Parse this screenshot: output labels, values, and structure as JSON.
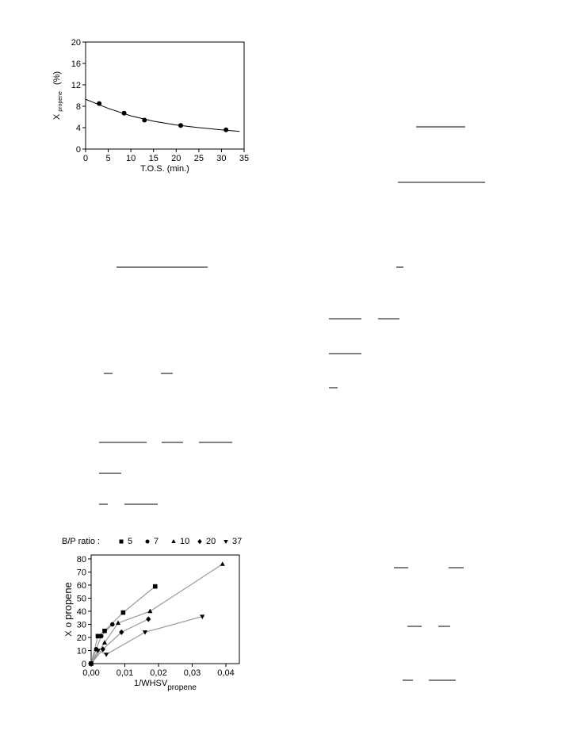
{
  "chart_data": [
    {
      "type": "scatter",
      "x": [
        3,
        8.5,
        13,
        21,
        31
      ],
      "values": [
        8.5,
        6.7,
        5.4,
        4.4,
        3.6
      ],
      "fit": {
        "x": [
          0,
          5,
          10,
          15,
          20,
          25,
          30,
          34
        ],
        "values": [
          9.3,
          7.6,
          6.2,
          5.2,
          4.5,
          4.0,
          3.6,
          3.3
        ]
      },
      "color": "#000000",
      "xlim": [
        0,
        35
      ],
      "xticks": [
        0,
        5,
        10,
        15,
        20,
        25,
        30,
        35
      ],
      "ylim": [
        0,
        20
      ],
      "yticks": [
        0,
        4,
        8,
        12,
        16,
        20
      ],
      "xlabel": "T.O.S. (min.)",
      "ylabel": "X",
      "ylabel_sub": "propene",
      "ylabel_unit": "(%)"
    },
    {
      "type": "scatter",
      "legend_title": "B/P ratio :",
      "series": [
        {
          "name": "5",
          "marker": "square",
          "color": "#000000",
          "x": [
            0,
            0.002,
            0.004,
            0.0095,
            0.019
          ],
          "values": [
            0,
            21,
            25,
            39,
            59
          ]
        },
        {
          "name": "7",
          "marker": "circle",
          "color": "#000000",
          "x": [
            0,
            0.0015,
            0.003,
            0.0063
          ],
          "values": [
            0,
            11,
            21,
            30
          ]
        },
        {
          "name": "10",
          "marker": "triangle",
          "color": "#000000",
          "x": [
            0,
            0.004,
            0.008,
            0.0175,
            0.039
          ],
          "values": [
            0,
            16,
            31,
            40,
            76
          ]
        },
        {
          "name": "20",
          "marker": "diamond",
          "color": "#000000",
          "x": [
            0,
            0.0035,
            0.009,
            0.017
          ],
          "values": [
            0,
            11,
            24,
            34
          ]
        },
        {
          "name": "37",
          "marker": "down-triangle",
          "color": "#000000",
          "x": [
            0,
            0.002,
            0.0045,
            0.016,
            0.033
          ],
          "values": [
            0,
            10,
            7,
            24,
            36
          ]
        }
      ],
      "line_color": "#999999",
      "xlim": [
        0,
        0.044
      ],
      "xticks": [
        {
          "value": 0,
          "label": "0,00"
        },
        {
          "value": 0.01,
          "label": "0,01"
        },
        {
          "value": 0.02,
          "label": "0,02"
        },
        {
          "value": 0.03,
          "label": "0,03"
        },
        {
          "value": 0.04,
          "label": "0,04"
        }
      ],
      "ylim": [
        0,
        83
      ],
      "yticks": [
        0,
        10,
        20,
        30,
        40,
        50,
        60,
        70,
        80
      ],
      "xlabel": "1/WHSV",
      "xlabel_sub": "propene",
      "ylabel": "X",
      "ylabel_sup": "o",
      "ylabel_sub": "propene"
    }
  ]
}
